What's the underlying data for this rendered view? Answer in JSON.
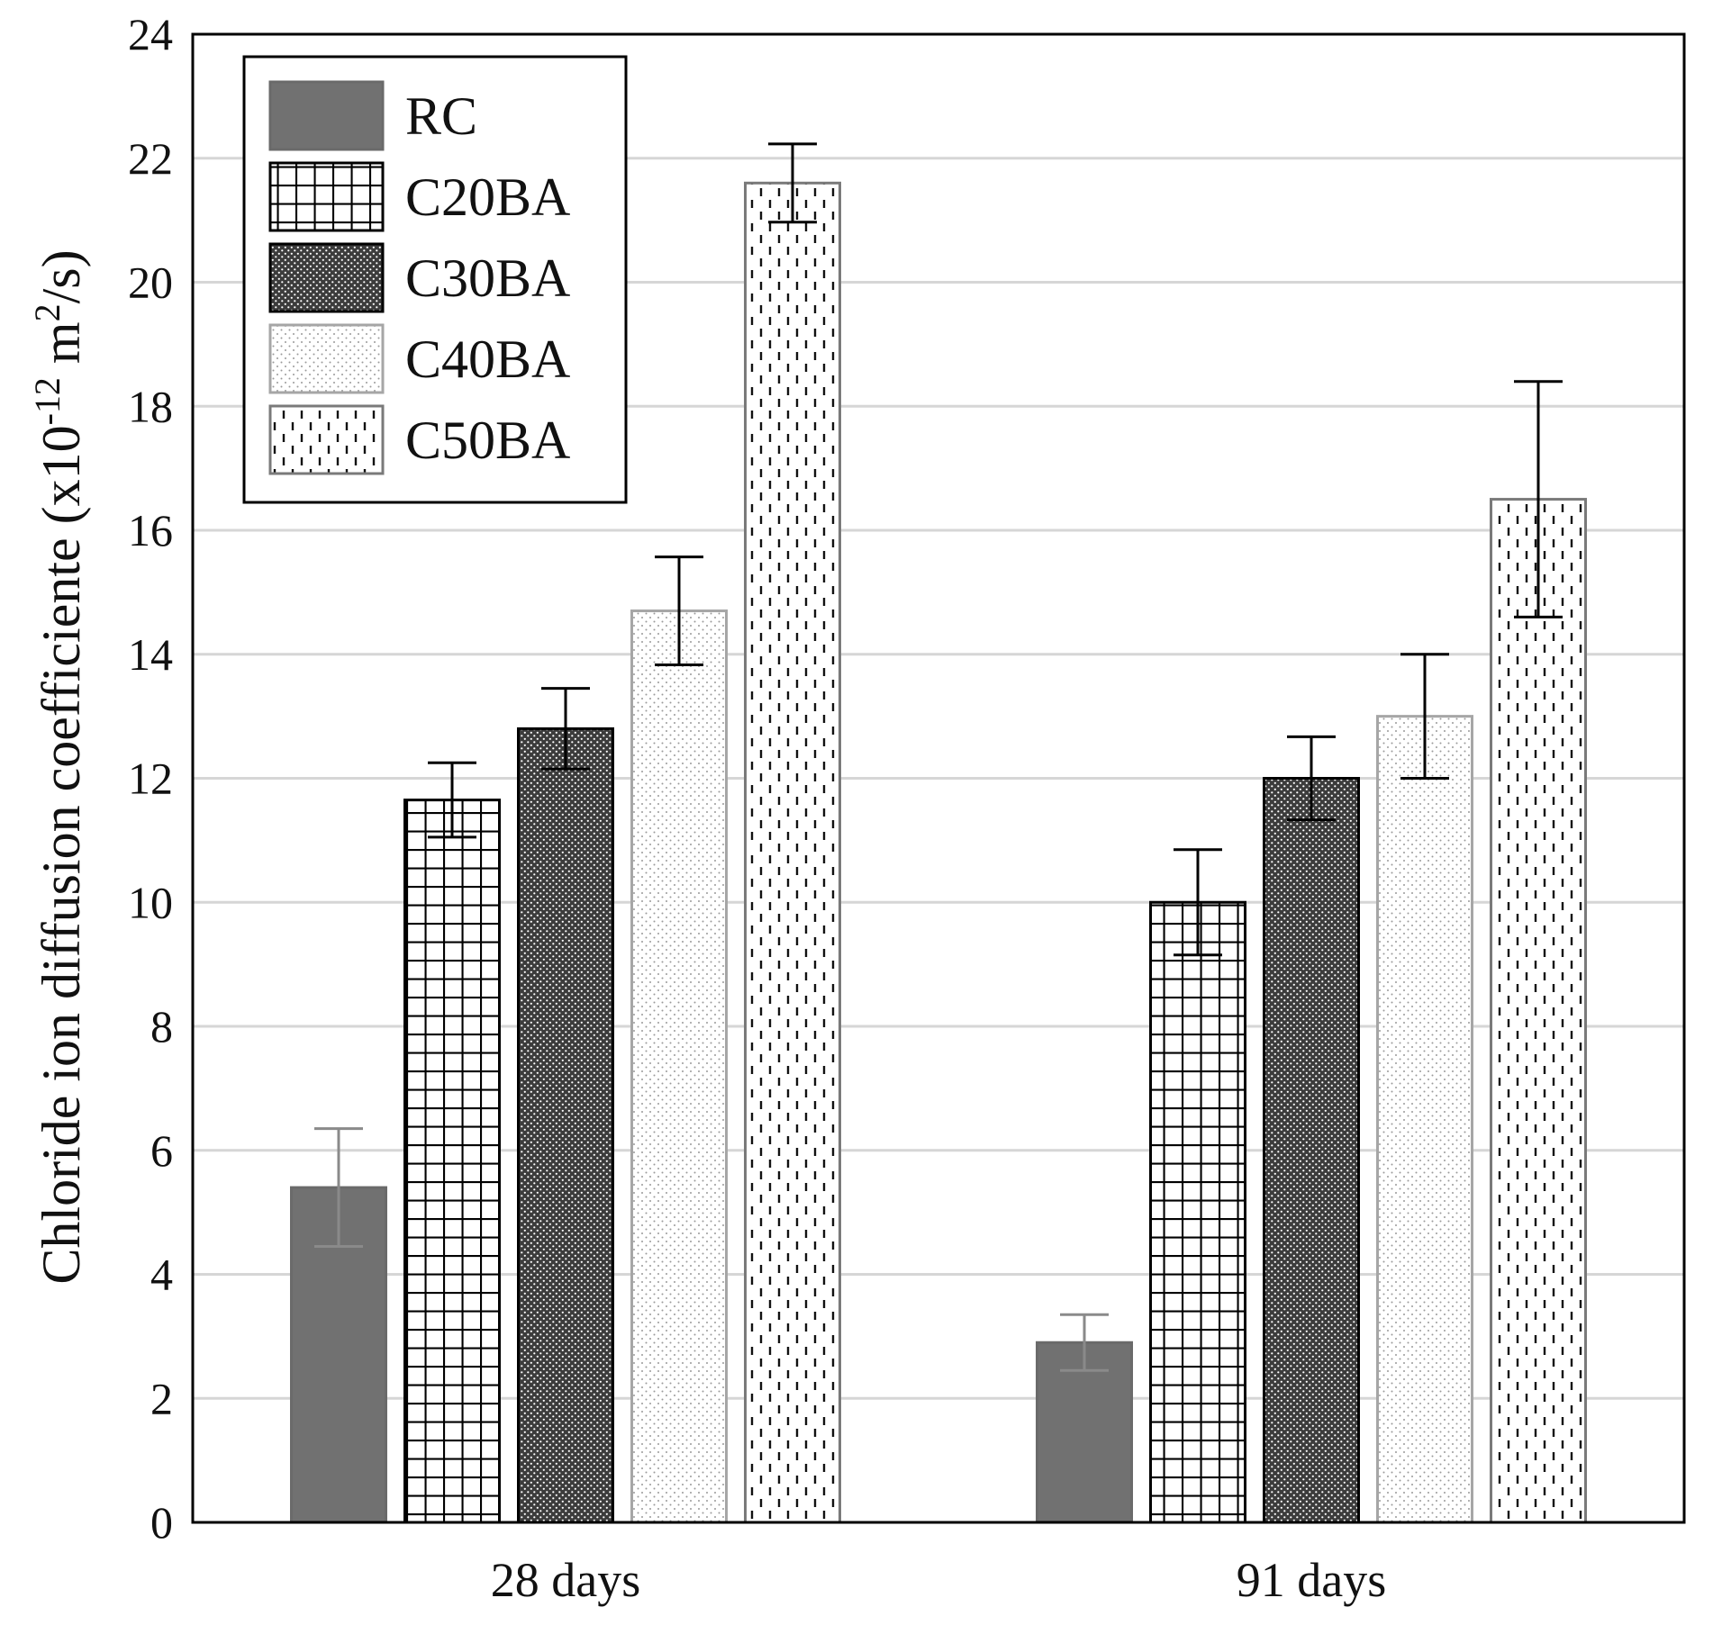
{
  "chart_data": {
    "type": "bar",
    "ylabel_parts": [
      "Chloride ion diffusion coefficiente (x10",
      "-12",
      " m",
      "2",
      "/s)"
    ],
    "categories": [
      "28 days",
      "91 days"
    ],
    "ylim": [
      0,
      24
    ],
    "yticks": [
      0,
      2,
      4,
      6,
      8,
      10,
      12,
      14,
      16,
      18,
      20,
      22,
      24
    ],
    "grid": true,
    "legend_position": "top-left",
    "series": [
      {
        "name": "RC",
        "pattern": "solid-gray",
        "values": [
          5.4,
          2.9
        ],
        "errors": [
          0.95,
          0.45
        ]
      },
      {
        "name": "C20BA",
        "pattern": "grid",
        "values": [
          11.65,
          10.0
        ],
        "errors": [
          0.6,
          0.85
        ]
      },
      {
        "name": "C30BA",
        "pattern": "dense-dots",
        "values": [
          12.8,
          12.0
        ],
        "errors": [
          0.65,
          0.67
        ]
      },
      {
        "name": "C40BA",
        "pattern": "light-dots",
        "values": [
          14.7,
          13.0
        ],
        "errors": [
          0.87,
          1.0
        ]
      },
      {
        "name": "C50BA",
        "pattern": "dashes",
        "values": [
          21.6,
          16.5
        ],
        "errors": [
          0.63,
          1.9
        ]
      }
    ],
    "colors": {
      "solid": "#717171",
      "solid_edge": "#6a6a6a",
      "dark_edge": "#000000",
      "light_edge": "#a6a6a6",
      "mid_edge": "#7a7a7a",
      "error_dark": "#000000",
      "error_light": "#8a8a8a"
    }
  }
}
